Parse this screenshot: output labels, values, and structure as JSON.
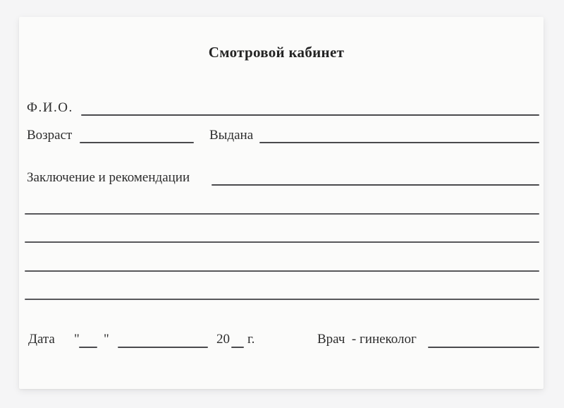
{
  "form": {
    "title": "Смотровой кабинет",
    "fields": {
      "fio_label": "Ф.И.О.",
      "age_label": "Возраст",
      "issued_label": "Выдана",
      "conclusion_label": "Заключение и рекомендации",
      "date_label": "Дата",
      "day_quote_open": "\"",
      "day_quote_close": "\"",
      "year_prefix": "20",
      "year_suffix": "г.",
      "doctor_label": "Врач  - гинеколог"
    },
    "blank_lines_count": 4,
    "colors": {
      "page_bg": "#f5f5f6",
      "card_bg": "#fbfbfa",
      "text": "#2d2d2d",
      "field_line": "#4a4a4d",
      "ruled_line": "#58585b"
    }
  }
}
